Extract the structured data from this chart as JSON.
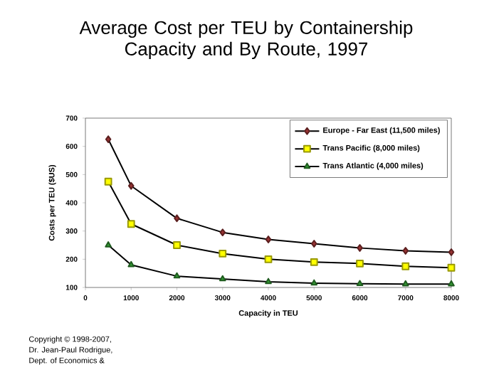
{
  "chart_data": {
    "type": "line",
    "title": "Average Cost per TEU by Containership Capacity and By Route, 1997",
    "xlabel": "Capacity in TEU",
    "ylabel": "Costs per TEU ($US)",
    "x": [
      500,
      1000,
      2000,
      3000,
      4000,
      5000,
      6000,
      7000,
      8000
    ],
    "series": [
      {
        "name": "Europe - Far East (11,500 miles)",
        "color": "#993333",
        "marker": "diamond",
        "values": [
          625,
          460,
          345,
          295,
          270,
          255,
          240,
          230,
          225
        ]
      },
      {
        "name": "Trans Pacific (8,000 miles)",
        "color": "#ffff00",
        "marker": "square",
        "values": [
          475,
          325,
          250,
          220,
          200,
          190,
          185,
          175,
          170
        ]
      },
      {
        "name": "Trans Atlantic (4,000 miles)",
        "color": "#339933",
        "marker": "triangle",
        "values": [
          250,
          180,
          140,
          130,
          120,
          115,
          113,
          112,
          112
        ]
      }
    ],
    "xlim": [
      0,
      8000
    ],
    "xticks": [
      0,
      1000,
      2000,
      3000,
      4000,
      5000,
      6000,
      7000,
      8000
    ],
    "ylim": [
      100,
      700
    ],
    "yticks": [
      100,
      200,
      300,
      400,
      500,
      600,
      700
    ],
    "grid": false,
    "legend": "top right",
    "line_style": "solid",
    "annotations": [
      "Copyright © 1998-2007,",
      "Dr. Jean-Paul Rodrigue,",
      "Dept. of Economics &"
    ]
  }
}
